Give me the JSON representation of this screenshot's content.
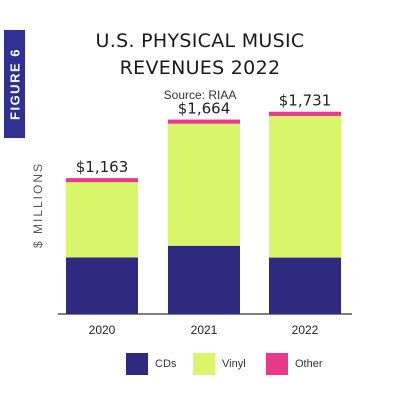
{
  "figure_tab": "FIGURE 6",
  "chart_data": {
    "type": "bar",
    "stacked": true,
    "title": "U.S. PHYSICAL MUSIC REVENUES 2022",
    "title_lines": [
      "U.S. PHYSICAL MUSIC",
      "REVENUES 2022"
    ],
    "subtitle": "Source: RIAA",
    "xlabel": "",
    "ylabel": "$ MILLIONS",
    "categories": [
      "2020",
      "2021",
      "2022"
    ],
    "totals_labels": [
      "$1,163",
      "$1,664",
      "$1,731"
    ],
    "totals": [
      1163,
      1664,
      1731
    ],
    "series": [
      {
        "name": "CDs",
        "color": "#2e2a7f",
        "values": [
          484,
          584,
          483
        ]
      },
      {
        "name": "Vinyl",
        "color": "#d9f56a",
        "values": [
          644,
          1045,
          1212
        ]
      },
      {
        "name": "Other",
        "color": "#e8398a",
        "values": [
          35,
          35,
          36
        ]
      }
    ],
    "ylim": [
      0,
      1900
    ],
    "grid": false,
    "legend": "bottom"
  }
}
